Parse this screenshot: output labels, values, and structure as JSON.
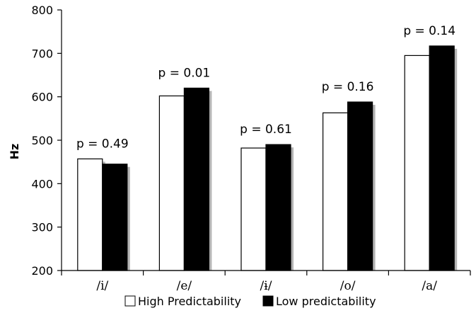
{
  "chart_data": {
    "type": "bar",
    "title": "",
    "xlabel": "",
    "ylabel": "Hz",
    "ylim": [
      200,
      800
    ],
    "yticks": [
      200,
      300,
      400,
      500,
      600,
      700,
      800
    ],
    "categories": [
      "/i/",
      "/e/",
      "/ɨ/",
      "/o/",
      "/a/"
    ],
    "series": [
      {
        "name": "High Predictability",
        "values": [
          457,
          602,
          482,
          563,
          695
        ],
        "color": "#ffffff"
      },
      {
        "name": "Low predictability",
        "values": [
          445,
          620,
          490,
          588,
          717
        ],
        "color": "#000000"
      }
    ],
    "annotations": [
      "p = 0.49",
      "p = 0.01",
      "p = 0.61",
      "p = 0.16",
      "p = 0.14"
    ],
    "legend_position": "bottom",
    "grid": false
  }
}
